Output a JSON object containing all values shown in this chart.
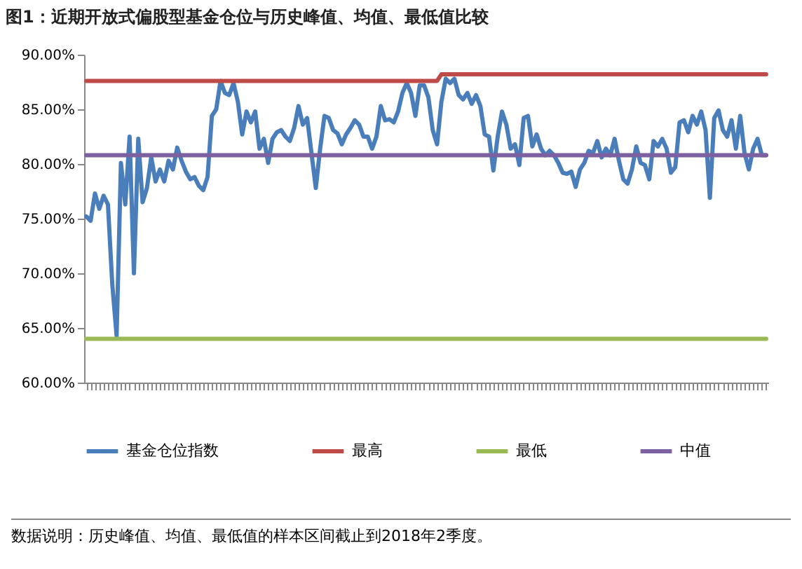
{
  "chart_data": {
    "type": "line",
    "title": "图1：近期开放式偏股型基金仓位与历史峰值、均值、最低值比较",
    "categories": [
      null,
      null,
      null,
      null,
      null,
      null,
      null,
      null,
      null,
      null,
      null,
      null,
      null,
      null,
      null,
      null,
      null,
      null,
      null,
      null,
      null,
      null,
      null,
      null,
      null,
      null,
      null,
      null,
      null,
      null,
      null,
      null,
      null,
      null,
      null,
      null,
      null,
      null,
      null,
      null,
      null,
      null,
      null,
      null,
      null,
      null,
      null,
      null,
      null,
      null,
      null,
      null,
      null,
      null,
      null,
      null,
      null,
      null,
      null,
      null,
      null,
      null,
      null,
      null,
      null,
      null,
      null,
      null,
      null,
      null,
      null,
      null,
      null,
      null,
      null,
      null,
      null,
      null,
      null,
      null,
      null,
      null,
      null,
      null,
      null,
      null,
      null,
      null,
      null,
      null,
      null,
      null,
      null,
      null,
      null,
      null,
      null,
      null,
      null,
      null,
      null,
      null,
      null,
      null,
      null,
      null,
      null,
      null,
      null,
      null,
      null,
      null,
      null,
      null,
      null,
      null,
      null,
      null,
      null,
      null,
      null,
      null,
      null,
      null,
      null,
      null,
      null,
      null,
      null,
      null,
      null,
      null,
      null,
      null,
      null,
      null,
      null,
      null,
      null,
      null,
      null,
      null,
      null,
      null,
      null,
      null,
      null,
      null,
      null,
      null,
      null,
      null,
      null,
      null,
      null,
      null,
      null,
      null
    ],
    "series": [
      {
        "name": "基金仓位指数",
        "color": "#4a7ebb",
        "values": [
          75.2,
          74.8,
          77.3,
          75.9,
          77.1,
          76.3,
          69.0,
          64.3,
          80.1,
          76.3,
          82.5,
          70.0,
          82.3,
          76.5,
          77.8,
          80.6,
          78.4,
          79.5,
          78.4,
          80.3,
          79.5,
          81.5,
          80.3,
          79.3,
          78.6,
          78.8,
          78.0,
          77.6,
          78.8,
          84.4,
          85.0,
          87.6,
          86.5,
          86.3,
          87.4,
          85.7,
          82.7,
          84.8,
          83.8,
          84.8,
          81.4,
          82.3,
          80.1,
          82.3,
          82.9,
          83.1,
          82.5,
          82.1,
          83.3,
          85.3,
          83.6,
          84.2,
          81.0,
          77.8,
          81.4,
          84.4,
          84.2,
          83.1,
          82.8,
          81.8,
          82.7,
          83.3,
          84.0,
          83.6,
          82.5,
          82.5,
          81.4,
          82.5,
          85.3,
          84.0,
          84.1,
          83.8,
          84.8,
          86.5,
          87.4,
          86.5,
          84.4,
          87.2,
          87.2,
          86.1,
          83.1,
          81.8,
          85.7,
          87.8,
          87.4,
          87.8,
          86.3,
          85.9,
          86.5,
          85.5,
          86.3,
          85.3,
          82.7,
          82.5,
          79.4,
          82.5,
          84.8,
          83.6,
          81.4,
          81.8,
          79.9,
          84.2,
          84.4,
          81.6,
          82.7,
          81.4,
          80.8,
          81.2,
          80.8,
          80.1,
          79.2,
          79.1,
          79.3,
          77.9,
          79.5,
          80.1,
          81.2,
          81.0,
          82.1,
          80.6,
          81.4,
          80.8,
          82.3,
          80.3,
          78.6,
          78.2,
          79.5,
          81.6,
          80.1,
          79.9,
          78.6,
          82.1,
          81.6,
          82.3,
          81.4,
          79.2,
          79.7,
          83.8,
          84.0,
          82.9,
          84.4,
          83.6,
          84.8,
          83.1,
          76.9,
          84.2,
          84.9,
          83.1,
          82.5,
          84.0,
          81.4,
          84.4,
          81.0,
          79.5,
          81.4,
          82.3,
          80.8,
          80.8
        ]
      },
      {
        "name": "最高",
        "color": "#be4b48",
        "values": [
          87.6,
          87.6,
          87.6,
          87.6,
          87.6,
          87.6,
          87.6,
          87.6,
          87.6,
          87.6,
          87.6,
          87.6,
          87.6,
          87.6,
          87.6,
          87.6,
          87.6,
          87.6,
          87.6,
          87.6,
          87.6,
          87.6,
          87.6,
          87.6,
          87.6,
          87.6,
          87.6,
          87.6,
          87.6,
          87.6,
          87.6,
          87.6,
          87.6,
          87.6,
          87.6,
          87.6,
          87.6,
          87.6,
          87.6,
          87.6,
          87.6,
          87.6,
          87.6,
          87.6,
          87.6,
          87.6,
          87.6,
          87.6,
          87.6,
          87.6,
          87.6,
          87.6,
          87.6,
          87.6,
          87.6,
          87.6,
          87.6,
          87.6,
          87.6,
          87.6,
          87.6,
          87.6,
          87.6,
          87.6,
          87.6,
          87.6,
          87.6,
          87.6,
          87.6,
          87.6,
          87.6,
          87.6,
          87.6,
          87.6,
          87.6,
          87.6,
          87.6,
          87.6,
          87.6,
          87.6,
          87.6,
          87.6,
          88.2,
          88.2,
          88.2,
          88.2,
          88.2,
          88.2,
          88.2,
          88.2,
          88.2,
          88.2,
          88.2,
          88.2,
          88.2,
          88.2,
          88.2,
          88.2,
          88.2,
          88.2,
          88.2,
          88.2,
          88.2,
          88.2,
          88.2,
          88.2,
          88.2,
          88.2,
          88.2,
          88.2,
          88.2,
          88.2,
          88.2,
          88.2,
          88.2,
          88.2,
          88.2,
          88.2,
          88.2,
          88.2,
          88.2,
          88.2,
          88.2,
          88.2,
          88.2,
          88.2,
          88.2,
          88.2,
          88.2,
          88.2,
          88.2,
          88.2,
          88.2,
          88.2,
          88.2,
          88.2,
          88.2,
          88.2,
          88.2,
          88.2,
          88.2,
          88.2,
          88.2,
          88.2,
          88.2,
          88.2,
          88.2,
          88.2,
          88.2,
          88.2,
          88.2,
          88.2,
          88.2,
          88.2,
          88.2,
          88.2,
          88.2,
          88.2
        ]
      },
      {
        "name": "最低",
        "color": "#98b954",
        "values": [
          64.0,
          64.0,
          64.0,
          64.0,
          64.0,
          64.0,
          64.0,
          64.0,
          64.0,
          64.0,
          64.0,
          64.0,
          64.0,
          64.0,
          64.0,
          64.0,
          64.0,
          64.0,
          64.0,
          64.0,
          64.0,
          64.0,
          64.0,
          64.0,
          64.0,
          64.0,
          64.0,
          64.0,
          64.0,
          64.0,
          64.0,
          64.0,
          64.0,
          64.0,
          64.0,
          64.0,
          64.0,
          64.0,
          64.0,
          64.0,
          64.0,
          64.0,
          64.0,
          64.0,
          64.0,
          64.0,
          64.0,
          64.0,
          64.0,
          64.0,
          64.0,
          64.0,
          64.0,
          64.0,
          64.0,
          64.0,
          64.0,
          64.0,
          64.0,
          64.0,
          64.0,
          64.0,
          64.0,
          64.0,
          64.0,
          64.0,
          64.0,
          64.0,
          64.0,
          64.0,
          64.0,
          64.0,
          64.0,
          64.0,
          64.0,
          64.0,
          64.0,
          64.0,
          64.0,
          64.0,
          64.0,
          64.0,
          64.0,
          64.0,
          64.0,
          64.0,
          64.0,
          64.0,
          64.0,
          64.0,
          64.0,
          64.0,
          64.0,
          64.0,
          64.0,
          64.0,
          64.0,
          64.0,
          64.0,
          64.0,
          64.0,
          64.0,
          64.0,
          64.0,
          64.0,
          64.0,
          64.0,
          64.0,
          64.0,
          64.0,
          64.0,
          64.0,
          64.0,
          64.0,
          64.0,
          64.0,
          64.0,
          64.0,
          64.0,
          64.0,
          64.0,
          64.0,
          64.0,
          64.0,
          64.0,
          64.0,
          64.0,
          64.0,
          64.0,
          64.0,
          64.0,
          64.0,
          64.0,
          64.0,
          64.0,
          64.0,
          64.0,
          64.0,
          64.0,
          64.0,
          64.0,
          64.0,
          64.0,
          64.0,
          64.0,
          64.0,
          64.0,
          64.0,
          64.0,
          64.0,
          64.0,
          64.0,
          64.0,
          64.0,
          64.0,
          64.0,
          64.0,
          64.0
        ]
      },
      {
        "name": "中值",
        "color": "#7d60a0",
        "values": [
          80.8,
          80.8,
          80.8,
          80.8,
          80.8,
          80.8,
          80.8,
          80.8,
          80.8,
          80.8,
          80.8,
          80.8,
          80.8,
          80.8,
          80.8,
          80.8,
          80.8,
          80.8,
          80.8,
          80.8,
          80.8,
          80.8,
          80.8,
          80.8,
          80.8,
          80.8,
          80.8,
          80.8,
          80.8,
          80.8,
          80.8,
          80.8,
          80.8,
          80.8,
          80.8,
          80.8,
          80.8,
          80.8,
          80.8,
          80.8,
          80.8,
          80.8,
          80.8,
          80.8,
          80.8,
          80.8,
          80.8,
          80.8,
          80.8,
          80.8,
          80.8,
          80.8,
          80.8,
          80.8,
          80.8,
          80.8,
          80.8,
          80.8,
          80.8,
          80.8,
          80.8,
          80.8,
          80.8,
          80.8,
          80.8,
          80.8,
          80.8,
          80.8,
          80.8,
          80.8,
          80.8,
          80.8,
          80.8,
          80.8,
          80.8,
          80.8,
          80.8,
          80.8,
          80.8,
          80.8,
          80.8,
          80.8,
          80.8,
          80.8,
          80.8,
          80.8,
          80.8,
          80.8,
          80.8,
          80.8,
          80.8,
          80.8,
          80.8,
          80.8,
          80.8,
          80.8,
          80.8,
          80.8,
          80.8,
          80.8,
          80.8,
          80.8,
          80.8,
          80.8,
          80.8,
          80.8,
          80.8,
          80.8,
          80.8,
          80.8,
          80.8,
          80.8,
          80.8,
          80.8,
          80.8,
          80.8,
          80.8,
          80.8,
          80.8,
          80.8,
          80.8,
          80.8,
          80.8,
          80.8,
          80.8,
          80.8,
          80.8,
          80.8,
          80.8,
          80.8,
          80.8,
          80.8,
          80.8,
          80.8,
          80.8,
          80.8,
          80.8,
          80.8,
          80.8,
          80.8,
          80.8,
          80.8,
          80.8,
          80.8,
          80.8,
          80.8,
          80.8,
          80.8,
          80.8,
          80.8,
          80.8,
          80.8,
          80.8,
          80.8,
          80.8,
          80.8,
          80.8,
          80.8
        ]
      }
    ],
    "ylim": [
      60,
      90
    ],
    "yticks": [
      {
        "value": 60,
        "label": "60.00%"
      },
      {
        "value": 65,
        "label": "65.00%"
      },
      {
        "value": 70,
        "label": "70.00%"
      },
      {
        "value": 75,
        "label": "75.00%"
      },
      {
        "value": 80,
        "label": "80.00%"
      },
      {
        "value": 85,
        "label": "85.00%"
      },
      {
        "value": 90,
        "label": "90.00%"
      }
    ],
    "tick_labels": "y",
    "legend": "bottom",
    "annotations": [
      "数据说明：历史峰值、均值、最低值的样本区间截止到2018年2季度。"
    ]
  }
}
